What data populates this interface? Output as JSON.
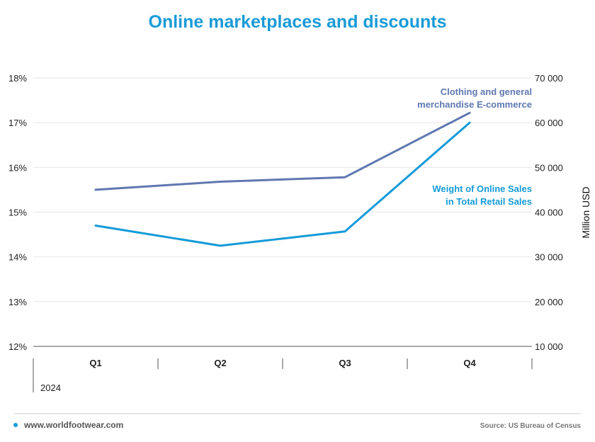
{
  "chart_data": {
    "type": "line",
    "title": "Online marketplaces and discounts",
    "categories": [
      "Q1",
      "Q2",
      "Q3",
      "Q4"
    ],
    "year_label": "2024",
    "y_left": {
      "ticks": [
        "12%",
        "13%",
        "14%",
        "15%",
        "16%",
        "17%",
        "18%"
      ],
      "range": [
        12,
        18
      ],
      "unit": "%"
    },
    "y_right": {
      "label": "Million USD",
      "ticks": [
        "10 000",
        "20 000",
        "30 000",
        "40 000",
        "50 000",
        "60 000",
        "70 000"
      ],
      "range": [
        10000,
        70000
      ]
    },
    "series": [
      {
        "name": "Clothing and general merchandise E-commerce",
        "label_lines": [
          "Clothing and general",
          "merchandise E-commerce"
        ],
        "axis": "right",
        "values": [
          45000,
          46800,
          47800,
          62200
        ],
        "color": "#5f78b0"
      },
      {
        "name": "Weight of Online Sales in Total Retail Sales",
        "label_lines": [
          "Weight of Online Sales",
          "in Total Retail Sales"
        ],
        "axis": "left",
        "values": [
          14.7,
          14.25,
          14.57,
          17.0
        ],
        "color": "#149bd8"
      }
    ],
    "grid": true,
    "legend": "inline-labels"
  },
  "footer": {
    "website": "www.worldfootwear.com",
    "source": "Source: US Bureau of Census",
    "dot_color": "#149bd8"
  },
  "colors": {
    "title": "#1a9bd7",
    "grid": "#e6e6e6",
    "axis": "#555555"
  }
}
